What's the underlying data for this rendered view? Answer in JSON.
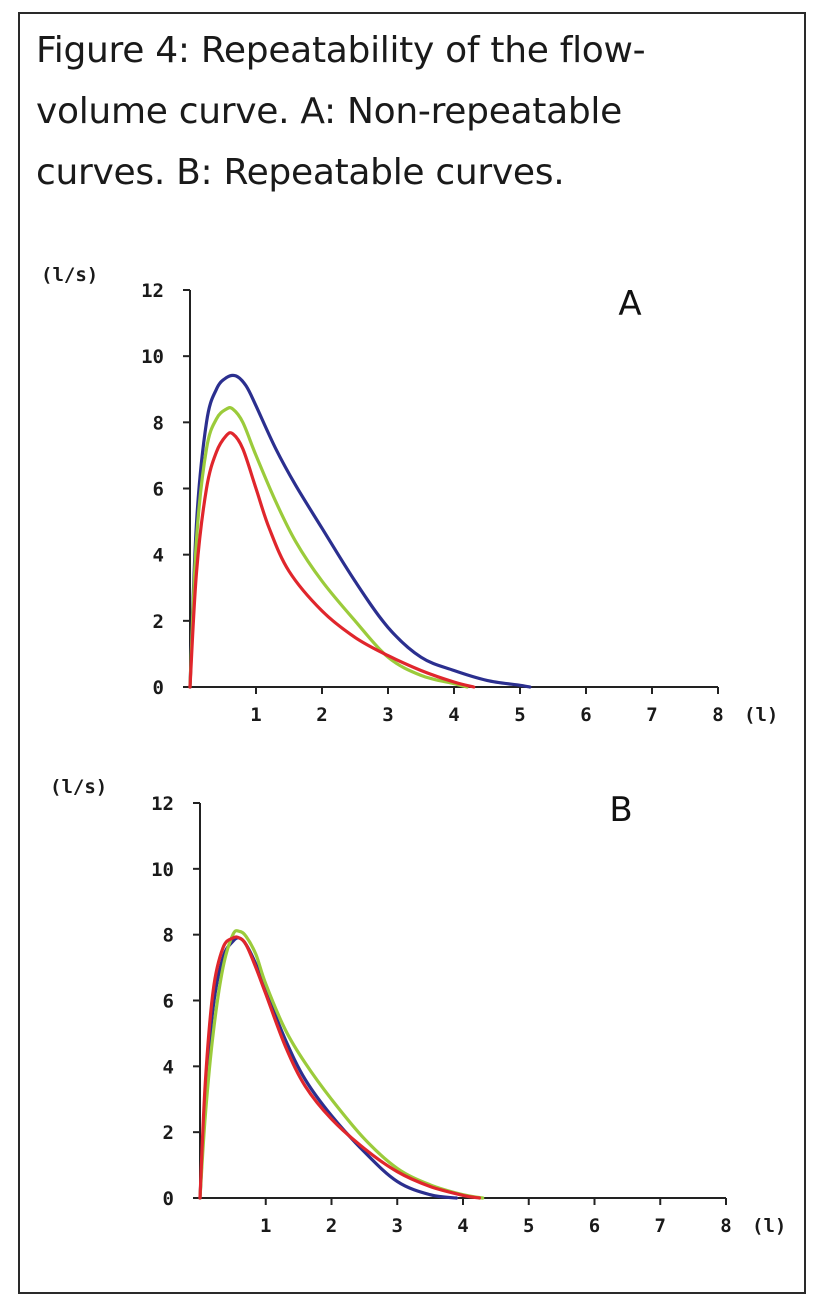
{
  "figure": {
    "caption": "Figure 4: Repeatability of the flow-volume curve. A: Non-repeatable curves. B: Repeatable curves."
  },
  "chart_data": [
    {
      "type": "line",
      "panel_label": "A",
      "ylabel": "(l/s)",
      "xlabel": "(l)",
      "xlim": [
        0,
        8
      ],
      "ylim": [
        0,
        12
      ],
      "x_ticks": [
        "1",
        "2",
        "3",
        "4",
        "5",
        "6",
        "7",
        "8"
      ],
      "y_ticks": [
        "0",
        "2",
        "4",
        "6",
        "8",
        "10",
        "12"
      ],
      "series": [
        {
          "color": "#2b2f8f",
          "x": [
            0,
            0.1,
            0.25,
            0.4,
            0.55,
            0.7,
            0.85,
            1.0,
            1.3,
            1.6,
            2.0,
            2.5,
            3.0,
            3.5,
            4.0,
            4.5,
            5.0,
            5.15
          ],
          "y": [
            0,
            5.0,
            8.0,
            9.0,
            9.35,
            9.4,
            9.1,
            8.5,
            7.2,
            6.1,
            4.8,
            3.2,
            1.8,
            0.9,
            0.5,
            0.2,
            0.05,
            0
          ]
        },
        {
          "color": "#9bcb3b",
          "x": [
            0,
            0.1,
            0.25,
            0.4,
            0.55,
            0.65,
            0.8,
            1.0,
            1.3,
            1.6,
            2.0,
            2.5,
            3.0,
            3.5,
            4.0,
            4.2
          ],
          "y": [
            0,
            4.5,
            7.2,
            8.1,
            8.4,
            8.4,
            8.0,
            7.0,
            5.6,
            4.4,
            3.2,
            2.0,
            0.9,
            0.35,
            0.1,
            0
          ]
        },
        {
          "color": "#e0262c",
          "x": [
            0,
            0.1,
            0.25,
            0.4,
            0.55,
            0.65,
            0.8,
            1.0,
            1.2,
            1.5,
            2.0,
            2.5,
            3.0,
            3.5,
            4.0,
            4.3
          ],
          "y": [
            0,
            3.5,
            6.0,
            7.1,
            7.6,
            7.65,
            7.2,
            6.0,
            4.8,
            3.5,
            2.3,
            1.5,
            0.95,
            0.5,
            0.15,
            0
          ]
        }
      ]
    },
    {
      "type": "line",
      "panel_label": "B",
      "ylabel": "(l/s)",
      "xlabel": "(l)",
      "xlim": [
        0,
        8
      ],
      "ylim": [
        0,
        12
      ],
      "x_ticks": [
        "1",
        "2",
        "3",
        "4",
        "5",
        "6",
        "7",
        "8"
      ],
      "y_ticks": [
        "0",
        "2",
        "4",
        "6",
        "8",
        "10",
        "12"
      ],
      "series": [
        {
          "color": "#2b2f8f",
          "x": [
            0,
            0.08,
            0.2,
            0.35,
            0.5,
            0.6,
            0.7,
            0.85,
            1.0,
            1.3,
            1.6,
            2.0,
            2.5,
            3.0,
            3.5,
            3.9
          ],
          "y": [
            0,
            3.0,
            5.8,
            7.3,
            7.8,
            7.9,
            7.7,
            7.1,
            6.3,
            4.8,
            3.6,
            2.5,
            1.4,
            0.5,
            0.1,
            0
          ]
        },
        {
          "color": "#9bcb3b",
          "x": [
            0,
            0.08,
            0.2,
            0.35,
            0.5,
            0.6,
            0.7,
            0.85,
            1.0,
            1.3,
            1.6,
            2.0,
            2.5,
            3.0,
            3.5,
            4.0,
            4.3
          ],
          "y": [
            0,
            2.5,
            5.0,
            7.0,
            8.0,
            8.1,
            7.95,
            7.4,
            6.5,
            5.1,
            4.1,
            3.0,
            1.8,
            0.9,
            0.4,
            0.1,
            0
          ]
        },
        {
          "color": "#e0262c",
          "x": [
            0,
            0.08,
            0.2,
            0.35,
            0.5,
            0.6,
            0.7,
            0.85,
            1.0,
            1.3,
            1.6,
            2.0,
            2.5,
            3.0,
            3.5,
            4.0,
            4.25
          ],
          "y": [
            0,
            3.5,
            6.3,
            7.6,
            7.9,
            7.9,
            7.7,
            7.0,
            6.2,
            4.6,
            3.4,
            2.4,
            1.5,
            0.8,
            0.35,
            0.08,
            0
          ]
        }
      ]
    }
  ]
}
